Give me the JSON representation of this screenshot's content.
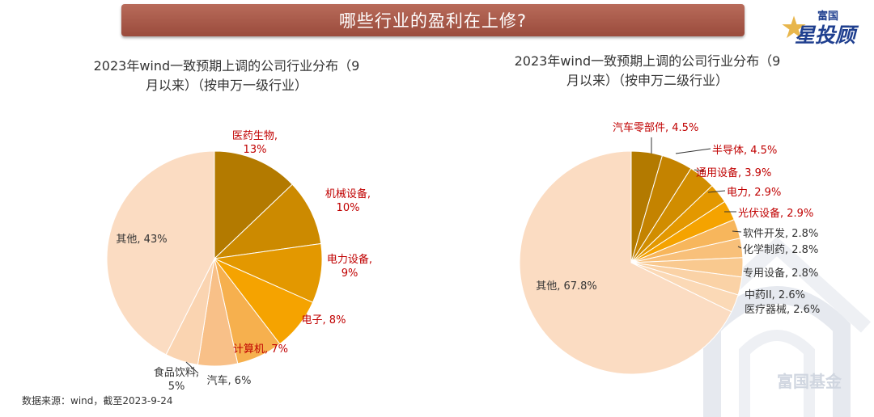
{
  "header": {
    "title": "哪些行业的盈利在上修?"
  },
  "logo": {
    "top": "富国",
    "main": "星投顾"
  },
  "watermark": {
    "text": "富国基金"
  },
  "source": "数据来源：wind，截至2023-9-24",
  "chart_data": [
    {
      "type": "pie",
      "title_lines": [
        "2023年wind一致预期上调的公司行业分布（9",
        "月以来）（按申万一级行业）"
      ],
      "slices": [
        {
          "name": "医药生物",
          "value": 13,
          "label_lines": [
            "医药生物,",
            "13%"
          ],
          "color": "#b37a00",
          "label_color": "#c00000"
        },
        {
          "name": "机械设备",
          "value": 10,
          "label_lines": [
            "机械设备,",
            "10%"
          ],
          "color": "#cc8a00",
          "label_color": "#c00000"
        },
        {
          "name": "电力设备",
          "value": 9,
          "label_lines": [
            "电力设备,",
            "9%"
          ],
          "color": "#e39800",
          "label_color": "#c00000"
        },
        {
          "name": "电子",
          "value": 8,
          "label_lines": [
            "电子, 8%"
          ],
          "color": "#f5a300",
          "label_color": "#c00000"
        },
        {
          "name": "计算机",
          "value": 7,
          "label_lines": [
            "计算机, 7%"
          ],
          "color": "#f6b04e",
          "label_color": "#c00000"
        },
        {
          "name": "汽车",
          "value": 6,
          "label_lines": [
            "汽车, 6%"
          ],
          "color": "#f8c088",
          "label_color": "#333333"
        },
        {
          "name": "食品饮料",
          "value": 5,
          "label_lines": [
            "食品饮料,",
            "5%"
          ],
          "color": "#fad4b1",
          "label_color": "#333333"
        },
        {
          "name": "其他",
          "value": 43,
          "label_lines": [
            "其他, 43%"
          ],
          "color": "#fbdcc2",
          "label_color": "#333333"
        }
      ]
    },
    {
      "type": "pie",
      "title_lines": [
        "2023年wind一致预期上调的公司行业分布（9",
        "月以来）（按申万二级行业）"
      ],
      "slices": [
        {
          "name": "汽车零部件",
          "value": 4.5,
          "label_lines": [
            "汽车零部件, 4.5%"
          ],
          "color": "#b37a00",
          "label_color": "#c00000"
        },
        {
          "name": "半导体",
          "value": 4.5,
          "label_lines": [
            "半导体, 4.5%"
          ],
          "color": "#c48300",
          "label_color": "#c00000"
        },
        {
          "name": "通用设备",
          "value": 3.9,
          "label_lines": [
            "通用设备, 3.9%"
          ],
          "color": "#d18d00",
          "label_color": "#c00000"
        },
        {
          "name": "电力",
          "value": 2.9,
          "label_lines": [
            "电力, 2.9%"
          ],
          "color": "#e39800",
          "label_color": "#c00000"
        },
        {
          "name": "光伏设备",
          "value": 2.9,
          "label_lines": [
            "光伏设备, 2.9%"
          ],
          "color": "#f5a300",
          "label_color": "#c00000"
        },
        {
          "name": "软件开发",
          "value": 2.8,
          "label_lines": [
            "软件开发, 2.8%"
          ],
          "color": "#f7b65c",
          "label_color": "#333333"
        },
        {
          "name": "化学制药",
          "value": 2.8,
          "label_lines": [
            "化学制药, 2.8%"
          ],
          "color": "#f8c07a",
          "label_color": "#333333"
        },
        {
          "name": "专用设备",
          "value": 2.8,
          "label_lines": [
            "专用设备, 2.8%"
          ],
          "color": "#f9c98f",
          "label_color": "#333333"
        },
        {
          "name": "中药II",
          "value": 2.6,
          "label_lines": [
            "中药II, 2.6%"
          ],
          "color": "#fad2a6",
          "label_color": "#333333"
        },
        {
          "name": "医疗器械",
          "value": 2.6,
          "label_lines": [
            "医疗器械, 2.6%"
          ],
          "color": "#fbd9b6",
          "label_color": "#333333"
        },
        {
          "name": "其他",
          "value": 67.8,
          "label_lines": [
            "其他, 67.8%"
          ],
          "color": "#fbdcc2",
          "label_color": "#333333"
        }
      ]
    }
  ]
}
